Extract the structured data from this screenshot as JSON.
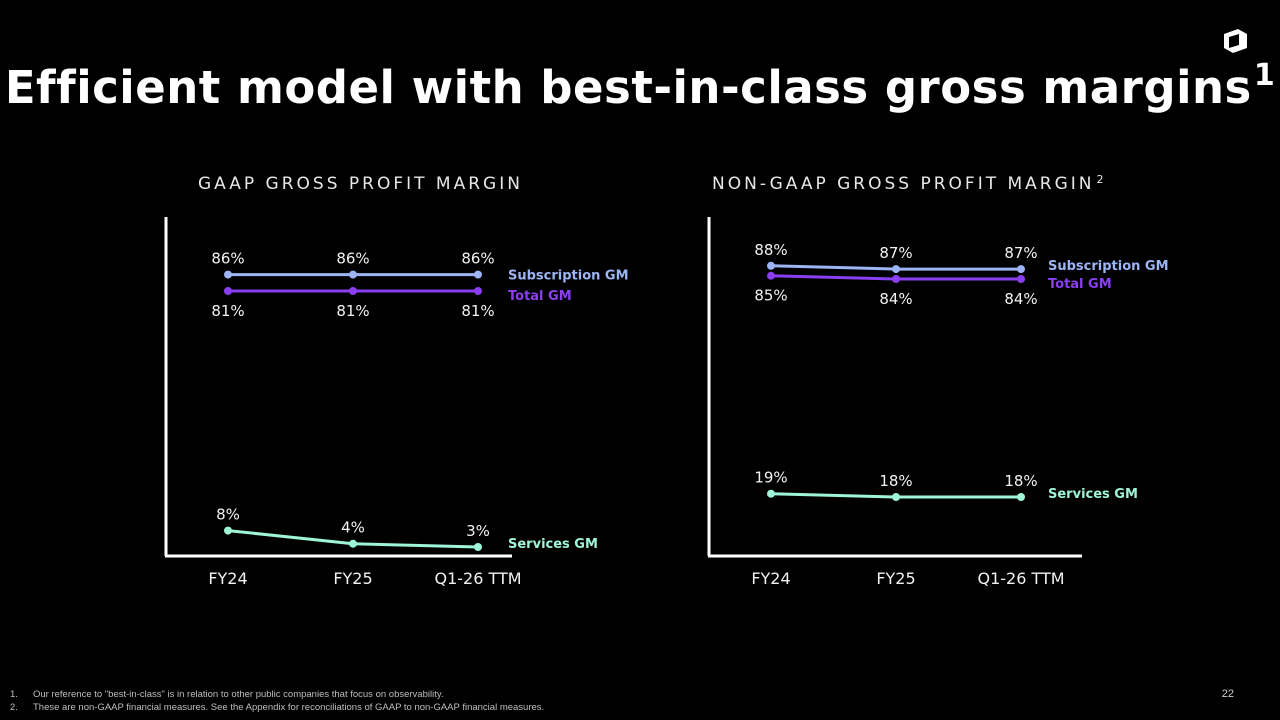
{
  "slide": {
    "title": "Efficient model with best-in-class gross margins",
    "title_sup": "1",
    "page_number": "22",
    "footnotes": [
      {
        "num": "1.",
        "text": "Our reference to \"best-in-class\" is in relation to other public companies that focus on observability."
      },
      {
        "num": "2.",
        "text": "These are non-GAAP financial measures. See the Appendix for reconciliations of GAAP to non-GAAP financial measures."
      }
    ],
    "logo_icon": "cube-logo-icon"
  },
  "colors": {
    "subscription": "#9db4f5",
    "total": "#8a3ff2",
    "services": "#9ef5d8",
    "axis": "#ffffff",
    "label": "#f2f2f2"
  },
  "chart_data": [
    {
      "type": "line",
      "title": "GAAP GROSS PROFIT MARGIN",
      "title_sup": "",
      "categories": [
        "FY24",
        "FY25",
        "Q1-26 TTM"
      ],
      "series": [
        {
          "name": "Subscription GM",
          "values": [
            86,
            86,
            86
          ],
          "labels": [
            "86%",
            "86%",
            "86%"
          ],
          "label_pos": "above"
        },
        {
          "name": "Total GM",
          "values": [
            81,
            81,
            81
          ],
          "labels": [
            "81%",
            "81%",
            "81%"
          ],
          "label_pos": "below"
        },
        {
          "name": "Services GM",
          "values": [
            8,
            4,
            3
          ],
          "labels": [
            "8%",
            "4%",
            "3%"
          ],
          "label_pos": "above"
        }
      ],
      "ylim": [
        0,
        100
      ],
      "legend": "right of line ends",
      "grid": false
    },
    {
      "type": "line",
      "title": "NON-GAAP GROSS PROFIT MARGIN",
      "title_sup": "2",
      "categories": [
        "FY24",
        "FY25",
        "Q1-26 TTM"
      ],
      "series": [
        {
          "name": "Subscription GM",
          "values": [
            88,
            87,
            87
          ],
          "labels": [
            "88%",
            "87%",
            "87%"
          ],
          "label_pos": "above"
        },
        {
          "name": "Total GM",
          "values": [
            85,
            84,
            84
          ],
          "labels": [
            "85%",
            "84%",
            "84%"
          ],
          "label_pos": "below"
        },
        {
          "name": "Services GM",
          "values": [
            19,
            18,
            18
          ],
          "labels": [
            "19%",
            "18%",
            "18%"
          ],
          "label_pos": "above"
        }
      ],
      "ylim": [
        0,
        100
      ],
      "legend": "right of line ends",
      "grid": false
    }
  ]
}
